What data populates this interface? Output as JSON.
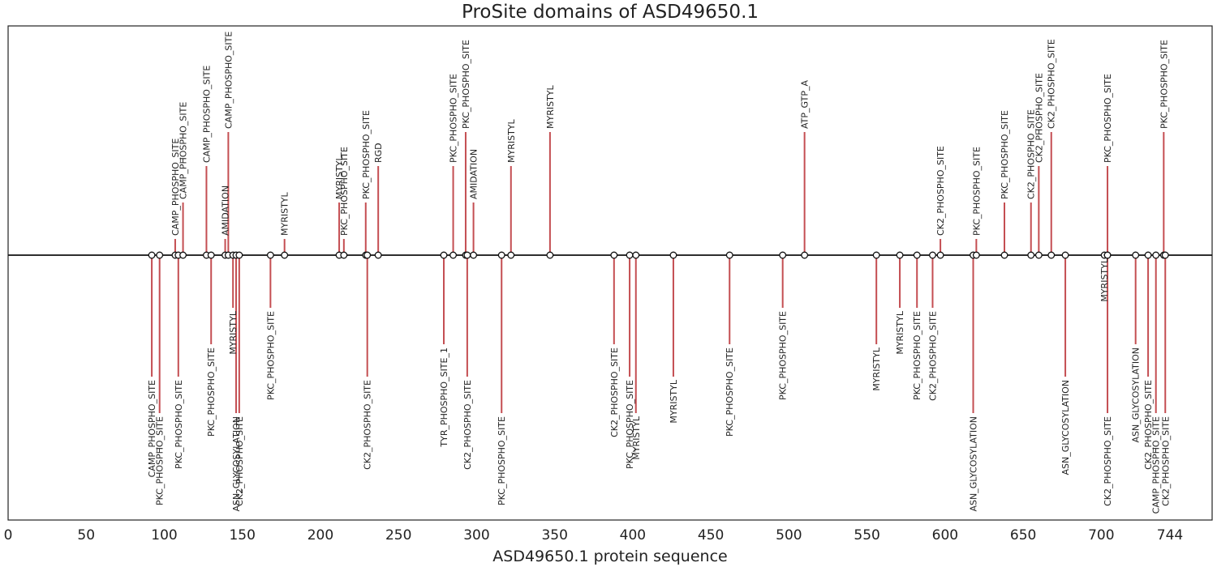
{
  "chart_data": {
    "type": "lollipop",
    "title": "ProSite domains of ASD49650.1",
    "xlabel": "ASD49650.1 protein sequence",
    "ylabel": "",
    "xlim": [
      0,
      771
    ],
    "x_ticks": [
      0,
      50,
      100,
      150,
      200,
      250,
      300,
      350,
      400,
      450,
      500,
      550,
      600,
      650,
      700,
      744
    ],
    "grid": false,
    "stem_color": "#c44e52",
    "marker_fill": "#ffffff",
    "marker_edge": "#111111",
    "sites": [
      {
        "pos": 92,
        "name": "CAMP_PHOSPHO_SITE",
        "side": "down",
        "level": 3
      },
      {
        "pos": 97,
        "name": "PKC_PHOSPHO_SITE",
        "side": "down",
        "level": 4
      },
      {
        "pos": 107,
        "name": "CAMP_PHOSPHO_SITE",
        "side": "up",
        "level": 1
      },
      {
        "pos": 109,
        "name": "PKC_PHOSPHO_SITE",
        "side": "down",
        "level": 3
      },
      {
        "pos": 112,
        "name": "CAMP_PHOSPHO_SITE",
        "side": "up",
        "level": 2
      },
      {
        "pos": 127,
        "name": "CAMP_PHOSPHO_SITE",
        "side": "up",
        "level": 3
      },
      {
        "pos": 130,
        "name": "PKC_PHOSPHO_SITE",
        "side": "down",
        "level": 2
      },
      {
        "pos": 139,
        "name": "AMIDATION",
        "side": "up",
        "level": 1
      },
      {
        "pos": 141,
        "name": "CAMP_PHOSPHO_SITE",
        "side": "up",
        "level": 4
      },
      {
        "pos": 144,
        "name": "MYRISTYL",
        "side": "down",
        "level": 1
      },
      {
        "pos": 146,
        "name": "ASN_GLYCOSYLATION",
        "side": "down",
        "level": 5
      },
      {
        "pos": 148,
        "name": "CK2_PHOSPHO_SITE",
        "side": "down",
        "level": 5
      },
      {
        "pos": 168,
        "name": "PKC_PHOSPHO_SITE",
        "side": "down",
        "level": 1
      },
      {
        "pos": 177,
        "name": "MYRISTYL",
        "side": "up",
        "level": 1
      },
      {
        "pos": 212,
        "name": "MYRISTYL",
        "side": "up",
        "level": 2
      },
      {
        "pos": 215,
        "name": "PKC_PHOSPHO_SITE",
        "side": "up",
        "level": 1
      },
      {
        "pos": 229,
        "name": "PKC_PHOSPHO_SITE",
        "side": "up",
        "level": 2
      },
      {
        "pos": 230,
        "name": "CK2_PHOSPHO_SITE",
        "side": "down",
        "level": 3
      },
      {
        "pos": 237,
        "name": "RGD",
        "side": "up",
        "level": 3
      },
      {
        "pos": 279,
        "name": "TYR_PHOSPHO_SITE_1",
        "side": "down",
        "level": 2
      },
      {
        "pos": 285,
        "name": "PKC_PHOSPHO_SITE",
        "side": "up",
        "level": 3
      },
      {
        "pos": 293,
        "name": "PKC_PHOSPHO_SITE",
        "side": "up",
        "level": 4
      },
      {
        "pos": 294,
        "name": "CK2_PHOSPHO_SITE",
        "side": "down",
        "level": 3
      },
      {
        "pos": 298,
        "name": "AMIDATION",
        "side": "up",
        "level": 2
      },
      {
        "pos": 316,
        "name": "PKC_PHOSPHO_SITE",
        "side": "down",
        "level": 4
      },
      {
        "pos": 322,
        "name": "MYRISTYL",
        "side": "up",
        "level": 3
      },
      {
        "pos": 347,
        "name": "MYRISTYL",
        "side": "up",
        "level": 4
      },
      {
        "pos": 388,
        "name": "CK2_PHOSPHO_SITE",
        "side": "down",
        "level": 2
      },
      {
        "pos": 398,
        "name": "PKC_PHOSPHO_SITE",
        "side": "down",
        "level": 3
      },
      {
        "pos": 402,
        "name": "MYRISTYL",
        "side": "down",
        "level": 4
      },
      {
        "pos": 426,
        "name": "MYRISTYL",
        "side": "down",
        "level": 3
      },
      {
        "pos": 462,
        "name": "PKC_PHOSPHO_SITE",
        "side": "down",
        "level": 2
      },
      {
        "pos": 496,
        "name": "PKC_PHOSPHO_SITE",
        "side": "down",
        "level": 1
      },
      {
        "pos": 510,
        "name": "ATP_GTP_A",
        "side": "up",
        "level": 4
      },
      {
        "pos": 556,
        "name": "MYRISTYL",
        "side": "down",
        "level": 2
      },
      {
        "pos": 571,
        "name": "MYRISTYL",
        "side": "down",
        "level": 1
      },
      {
        "pos": 582,
        "name": "PKC_PHOSPHO_SITE",
        "side": "down",
        "level": 1
      },
      {
        "pos": 592,
        "name": "CK2_PHOSPHO_SITE",
        "side": "down",
        "level": 1
      },
      {
        "pos": 597,
        "name": "CK2_PHOSPHO_SITE",
        "side": "up",
        "level": 1
      },
      {
        "pos": 618,
        "name": "ASN_GLYCOSYLATION",
        "side": "down",
        "level": 4
      },
      {
        "pos": 620,
        "name": "PKC_PHOSPHO_SITE",
        "side": "up",
        "level": 1
      },
      {
        "pos": 638,
        "name": "PKC_PHOSPHO_SITE",
        "side": "up",
        "level": 2
      },
      {
        "pos": 655,
        "name": "CK2_PHOSPHO_SITE",
        "side": "up",
        "level": 2
      },
      {
        "pos": 660,
        "name": "CK2_PHOSPHO_SITE",
        "side": "up",
        "level": 3
      },
      {
        "pos": 668,
        "name": "CK2_PHOSPHO_SITE",
        "side": "up",
        "level": 4
      },
      {
        "pos": 677,
        "name": "ASN_GLYCOSYLATION",
        "side": "down",
        "level": 3
      },
      {
        "pos": 702,
        "name": "MYRISTYL",
        "side": "down",
        "level": 0
      },
      {
        "pos": 704,
        "name": "PKC_PHOSPHO_SITE",
        "side": "up",
        "level": 3
      },
      {
        "pos": 704,
        "name": "CK2_PHOSPHO_SITE",
        "side": "down",
        "level": 5
      },
      {
        "pos": 722,
        "name": "ASN_GLYCOSYLATION",
        "side": "down",
        "level": 2
      },
      {
        "pos": 730,
        "name": "CK2_PHOSPHO_SITE",
        "side": "down",
        "level": 3
      },
      {
        "pos": 735,
        "name": "CAMP_PHOSPHO_SITE",
        "side": "down",
        "level": 4
      },
      {
        "pos": 740,
        "name": "PKC_PHOSPHO_SITE",
        "side": "up",
        "level": 4
      },
      {
        "pos": 741,
        "name": "CK2_PHOSPHO_SITE",
        "side": "down",
        "level": 4
      }
    ]
  }
}
